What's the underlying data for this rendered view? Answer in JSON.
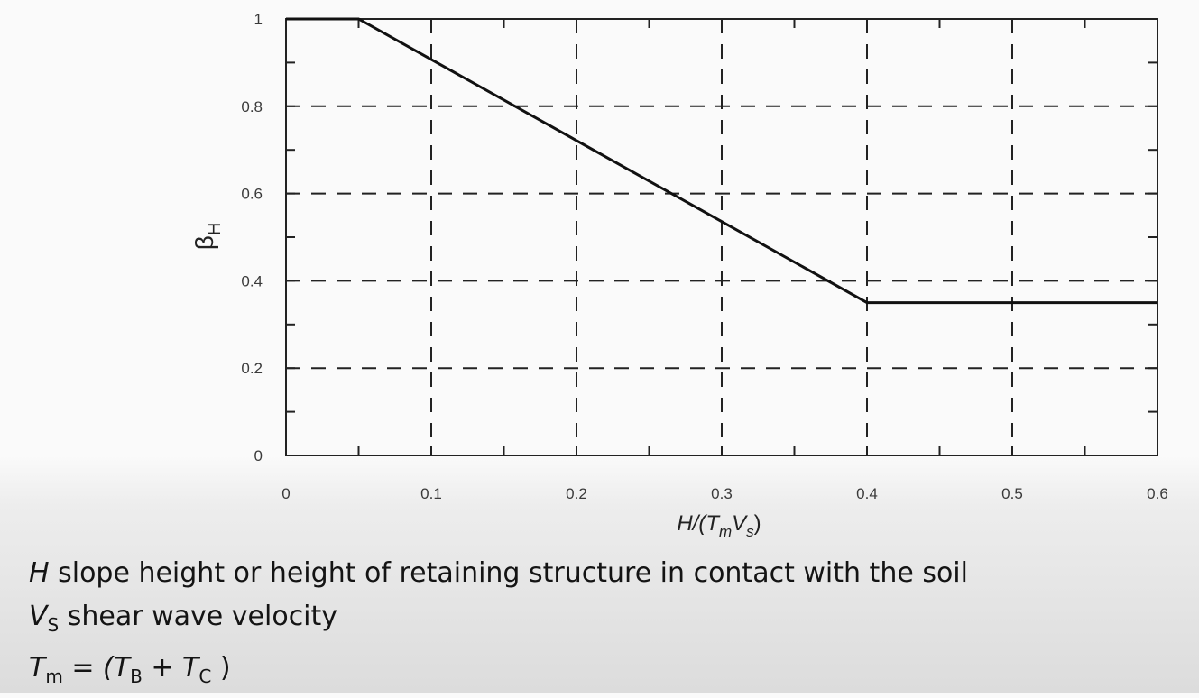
{
  "chart_data": {
    "type": "line",
    "title": "",
    "xlabel": {
      "main": "H/(T",
      "sub1": "m",
      "mid": "V",
      "sub2": "s",
      "close": ")"
    },
    "ylabel": {
      "main": "β",
      "sub": "H"
    },
    "xlim": [
      0,
      0.6
    ],
    "ylim": [
      0,
      1
    ],
    "xticks": [
      "0",
      "0.1",
      "0.2",
      "0.3",
      "0.4",
      "0.5",
      "0.6"
    ],
    "yticks": [
      "0",
      "0.2",
      "0.4",
      "0.6",
      "0.8",
      "1"
    ],
    "xtick_values": [
      0,
      0.1,
      0.2,
      0.3,
      0.4,
      0.5,
      0.6
    ],
    "ytick_values": [
      0,
      0.2,
      0.4,
      0.6,
      0.8,
      1.0
    ],
    "grid": "dashed",
    "series": [
      {
        "x": [
          0,
          0.05,
          0.4,
          0.6
        ],
        "y": [
          1.0,
          1.0,
          0.35,
          0.35
        ]
      }
    ]
  },
  "notes": [
    {
      "symbol": "H",
      "sub": "",
      "text": " slope height or height of retaining structure in contact with the soil"
    },
    {
      "symbol": "V",
      "sub": "S",
      "text": " shear wave velocity"
    },
    {
      "symbol": "T",
      "sub": "m",
      "text": " = (T",
      "sub2": "B",
      "text2": " + T",
      "sub3": "C",
      "text3": " )"
    }
  ]
}
